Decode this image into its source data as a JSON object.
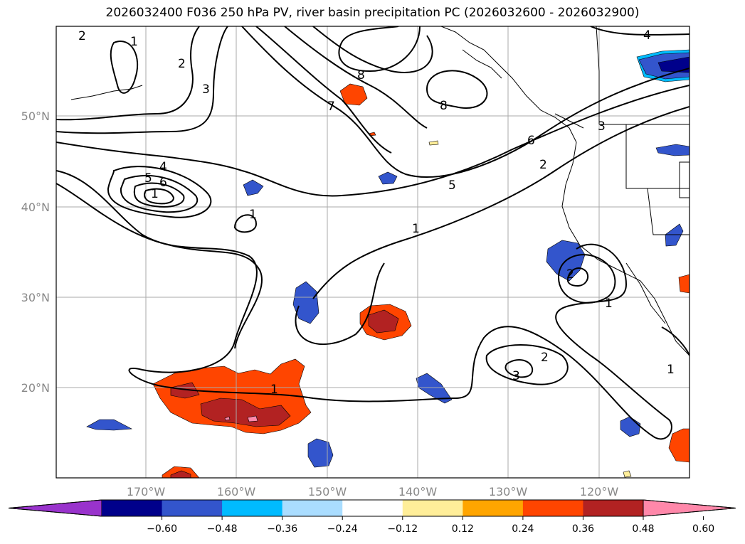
{
  "title": "2026032400 F036 250 hPa PV, river basin precipitation PC (2026032600 - 2026032900)",
  "map": {
    "lon_labels": [
      "170°W",
      "160°W",
      "150°W",
      "140°W",
      "130°W",
      "120°W"
    ],
    "lat_labels": [
      "50°N",
      "40°N",
      "30°N",
      "20°N"
    ],
    "contour_labels": [
      "1",
      "2",
      "3",
      "4",
      "5",
      "6",
      "7",
      "8"
    ],
    "grid": true
  },
  "colorbar": {
    "ticks": [
      "−0.60",
      "−0.48",
      "−0.36",
      "−0.24",
      "−0.12",
      "0.12",
      "0.24",
      "0.36",
      "0.48",
      "0.60"
    ],
    "colors": [
      "#9933cc",
      "#00008b",
      "#3355cc",
      "#00bbff",
      "#aaddff",
      "#ffffff",
      "#ffee99",
      "#ffa500",
      "#ff4500",
      "#b22222",
      "#ff88aa"
    ],
    "extend": "both"
  }
}
